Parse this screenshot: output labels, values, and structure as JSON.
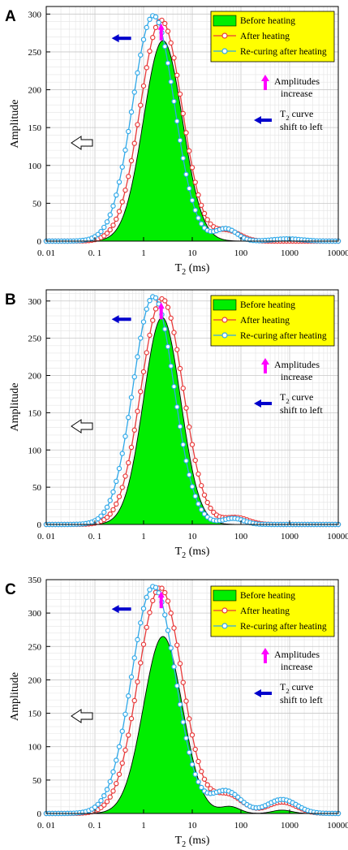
{
  "figure": {
    "legend": [
      {
        "label": "Before heating",
        "color": "#00ee00",
        "style": "filled-area"
      },
      {
        "label": "After heating",
        "color": "#e83a3a",
        "style": "line-marker"
      },
      {
        "label": "Re-curing after heating",
        "color": "#2fa8e8",
        "style": "line-marker"
      }
    ],
    "annotation_amplitude": [
      "Amplitudes",
      "increase"
    ],
    "annotation_shift": {
      "line1_main": "T",
      "line1_sub": "2",
      "line1_rest": " curve",
      "line2": "shift to left"
    },
    "colors": {
      "legend_bg": "#ffff00",
      "up_arrow": "#ff00ff",
      "left_arrow": "#0000cc",
      "grid": "#c8c8c8"
    }
  },
  "chart_data": [
    {
      "panel": "A",
      "type": "area",
      "xlabel": {
        "main": "T",
        "sub": "2",
        "rest": " (ms)"
      },
      "ylabel": "Amplitude",
      "x_scale": "log",
      "xlim": [
        0.01,
        10000
      ],
      "ylim": [
        0,
        310
      ],
      "x_ticks": [
        "0. 01",
        "0. 1",
        "1",
        "10",
        "100",
        "1000",
        "10000"
      ],
      "y_ticks": [
        0,
        50,
        100,
        150,
        200,
        250,
        300
      ],
      "grid": true,
      "legend_position": "top-right",
      "series": [
        {
          "name": "Before heating",
          "peaks": [
            {
              "center_ms": 2.5,
              "amplitude": 265,
              "width_decades": 0.4
            }
          ]
        },
        {
          "name": "After heating",
          "peaks": [
            {
              "center_ms": 2.3,
              "amplitude": 292,
              "width_decades": 0.43
            },
            {
              "center_ms": 55,
              "amplitude": 13,
              "width_decades": 0.25
            }
          ]
        },
        {
          "name": "Re-curing after heating",
          "peaks": [
            {
              "center_ms": 1.6,
              "amplitude": 298,
              "width_decades": 0.43
            },
            {
              "center_ms": 50,
              "amplitude": 16,
              "width_decades": 0.22
            },
            {
              "center_ms": 900,
              "amplitude": 3,
              "width_decades": 0.3
            }
          ]
        }
      ]
    },
    {
      "panel": "B",
      "type": "area",
      "xlabel": {
        "main": "T",
        "sub": "2",
        "rest": " (ms)"
      },
      "ylabel": "Amplitude",
      "x_scale": "log",
      "xlim": [
        0.01,
        10000
      ],
      "ylim": [
        0,
        315
      ],
      "x_ticks": [
        "0. 01",
        "0. 1",
        "1",
        "10",
        "100",
        "1000",
        "10000"
      ],
      "y_ticks": [
        0,
        50,
        100,
        150,
        200,
        250,
        300
      ],
      "grid": true,
      "legend_position": "top-right",
      "series": [
        {
          "name": "Before heating",
          "peaks": [
            {
              "center_ms": 2.4,
              "amplitude": 278,
              "width_decades": 0.38
            }
          ]
        },
        {
          "name": "After heating",
          "peaks": [
            {
              "center_ms": 2.4,
              "amplitude": 303,
              "width_decades": 0.43
            },
            {
              "center_ms": 80,
              "amplitude": 9,
              "width_decades": 0.25
            }
          ]
        },
        {
          "name": "Re-curing after heating",
          "peaks": [
            {
              "center_ms": 1.6,
              "amplitude": 306,
              "width_decades": 0.42
            },
            {
              "center_ms": 70,
              "amplitude": 8,
              "width_decades": 0.22
            }
          ]
        }
      ]
    },
    {
      "panel": "C",
      "type": "area",
      "xlabel": {
        "main": "T",
        "sub": "2",
        "rest": " (ms)"
      },
      "ylabel": "Amplitude",
      "x_scale": "log",
      "xlim": [
        0.01,
        10000
      ],
      "ylim": [
        0,
        350
      ],
      "x_ticks": [
        "0. 01",
        "0. 1",
        "1",
        "10",
        "100",
        "1000",
        "10000"
      ],
      "y_ticks": [
        0,
        50,
        100,
        150,
        200,
        250,
        300,
        350
      ],
      "grid": true,
      "legend_position": "top-right",
      "series": [
        {
          "name": "Before heating",
          "peaks": [
            {
              "center_ms": 2.5,
              "amplitude": 265,
              "width_decades": 0.4
            },
            {
              "center_ms": 60,
              "amplitude": 10,
              "width_decades": 0.2
            },
            {
              "center_ms": 700,
              "amplitude": 5,
              "width_decades": 0.2
            }
          ]
        },
        {
          "name": "After heating",
          "peaks": [
            {
              "center_ms": 2.2,
              "amplitude": 338,
              "width_decades": 0.45
            },
            {
              "center_ms": 55,
              "amplitude": 27,
              "width_decades": 0.3
            },
            {
              "center_ms": 700,
              "amplitude": 17,
              "width_decades": 0.3
            }
          ]
        },
        {
          "name": "Re-curing after heating",
          "peaks": [
            {
              "center_ms": 1.6,
              "amplitude": 340,
              "width_decades": 0.45
            },
            {
              "center_ms": 50,
              "amplitude": 33,
              "width_decades": 0.3
            },
            {
              "center_ms": 700,
              "amplitude": 21,
              "width_decades": 0.3
            }
          ]
        }
      ]
    }
  ]
}
